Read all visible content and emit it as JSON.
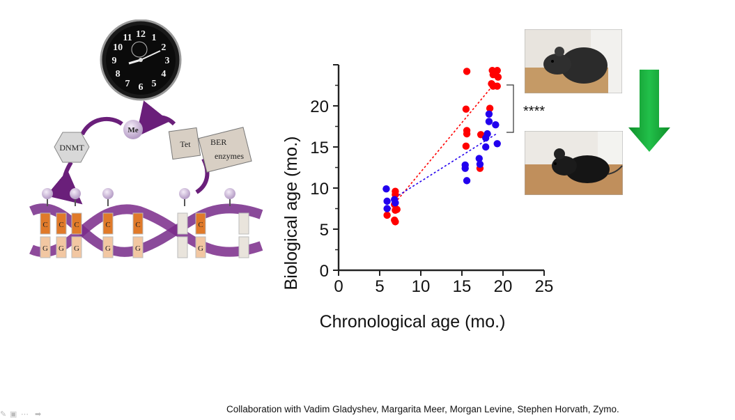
{
  "illustration": {
    "clock": {
      "numbers": [
        "12",
        "1",
        "2",
        "3",
        "4",
        "5",
        "6",
        "7",
        "8",
        "9",
        "10",
        "11"
      ]
    },
    "labels": {
      "me": "Me",
      "dnmt": "DNMT",
      "tet": "Tet",
      "ber": "BER",
      "enzymes": "enzymes"
    },
    "dna_letters_top": [
      "C",
      "C",
      "C",
      "C",
      "C",
      "C"
    ],
    "dna_letters_bottom": [
      "G",
      "G",
      "G",
      "G",
      "G",
      "G"
    ]
  },
  "chart_data": {
    "type": "scatter",
    "xlabel": "Chronological age (mo.)",
    "ylabel": "Biological age (mo.)",
    "xlim": [
      0,
      25
    ],
    "ylim": [
      0,
      25
    ],
    "xticks": [
      0,
      5,
      10,
      15,
      20,
      25
    ],
    "yticks": [
      0,
      5,
      10,
      15,
      20
    ],
    "grid": false,
    "annotation": "****",
    "series": [
      {
        "color": "#ff0000",
        "trendline": [
          [
            6.2,
            7.4
          ],
          [
            19.2,
            23.0
          ]
        ],
        "points": [
          [
            5.9,
            6.7
          ],
          [
            6.8,
            6.1
          ],
          [
            6.9,
            5.9
          ],
          [
            6.9,
            7.3
          ],
          [
            6.8,
            8.0
          ],
          [
            7.1,
            7.4
          ],
          [
            6.9,
            9.2
          ],
          [
            6.9,
            9.6
          ],
          [
            15.6,
            24.2
          ],
          [
            15.5,
            19.6
          ],
          [
            15.6,
            17.0
          ],
          [
            15.6,
            16.6
          ],
          [
            15.5,
            15.1
          ],
          [
            17.2,
            12.4
          ],
          [
            17.3,
            16.5
          ],
          [
            18.4,
            19.7
          ],
          [
            18.7,
            24.3
          ],
          [
            19.3,
            24.3
          ],
          [
            18.8,
            23.8
          ],
          [
            19.4,
            23.5
          ],
          [
            18.6,
            22.7
          ],
          [
            19.3,
            22.4
          ],
          [
            18.8,
            22.4
          ]
        ]
      },
      {
        "color": "#2200ee",
        "trendline": [
          [
            6.0,
            8.3
          ],
          [
            19.2,
            16.6
          ]
        ],
        "points": [
          [
            5.8,
            9.9
          ],
          [
            5.9,
            8.4
          ],
          [
            5.9,
            7.5
          ],
          [
            6.8,
            8.6
          ],
          [
            6.9,
            8.2
          ],
          [
            15.4,
            12.4
          ],
          [
            15.4,
            12.8
          ],
          [
            15.6,
            10.9
          ],
          [
            17.1,
            13.6
          ],
          [
            17.2,
            12.9
          ],
          [
            17.9,
            15.0
          ],
          [
            17.9,
            16.1
          ],
          [
            18.1,
            16.6
          ],
          [
            18.3,
            19.0
          ],
          [
            18.3,
            18.1
          ],
          [
            19.1,
            17.7
          ],
          [
            19.3,
            15.4
          ]
        ]
      }
    ]
  },
  "footnote": "Collaboration with Vadim Gladyshev, Margarita Meer, Morgan Levine, Stephen Horvath, Zymo.",
  "colors": {
    "arrow": "#11aa33",
    "accent_purple": "#7a2a8a"
  }
}
